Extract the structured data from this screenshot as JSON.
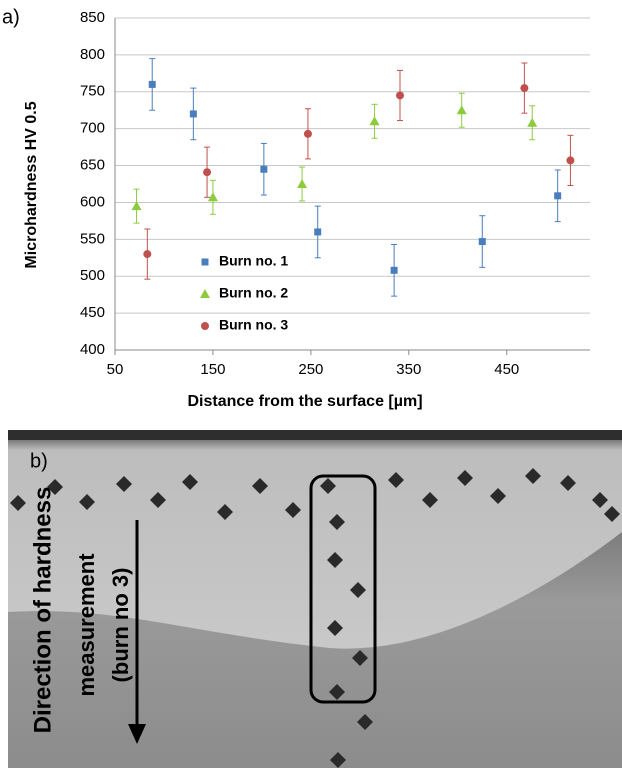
{
  "chart_data": {
    "type": "scatter",
    "panel_label": "a)",
    "x_label": "Distance from the surface [µm]",
    "y_label": "Microhardness  HV 0.5",
    "xlim": [
      50,
      535
    ],
    "xticks": [
      50,
      150,
      250,
      350,
      450
    ],
    "ylim": [
      400,
      850
    ],
    "yticks": [
      400,
      450,
      500,
      550,
      600,
      650,
      700,
      750,
      800,
      850
    ],
    "grid": true,
    "legend": "center-left",
    "series": [
      {
        "name": "Burn no. 1",
        "color": "#4a7ebb",
        "marker": "square",
        "x": [
          88,
          130,
          202,
          257,
          335,
          425,
          502
        ],
        "values": [
          760,
          720,
          645,
          560,
          508,
          547,
          609
        ],
        "errors": [
          35,
          35,
          35,
          35,
          35,
          35,
          35
        ]
      },
      {
        "name": "Burn no. 2",
        "color": "#8ccc3c",
        "marker": "triangle",
        "x": [
          72,
          150,
          241,
          315,
          404,
          476
        ],
        "values": [
          595,
          607,
          625,
          710,
          725,
          708
        ],
        "errors": [
          23,
          23,
          23,
          23,
          23,
          23
        ]
      },
      {
        "name": "Burn no. 3",
        "color": "#c0504d",
        "marker": "circle",
        "x": [
          83,
          144,
          247,
          341,
          468,
          515
        ],
        "values": [
          530,
          641,
          693,
          745,
          755,
          657
        ],
        "errors": [
          34,
          34,
          34,
          34,
          34,
          34
        ]
      }
    ]
  },
  "micrograph": {
    "panel_label": "b)",
    "annotation": [
      "Direction of hardness",
      "measurement",
      "(burn no 3)"
    ]
  }
}
